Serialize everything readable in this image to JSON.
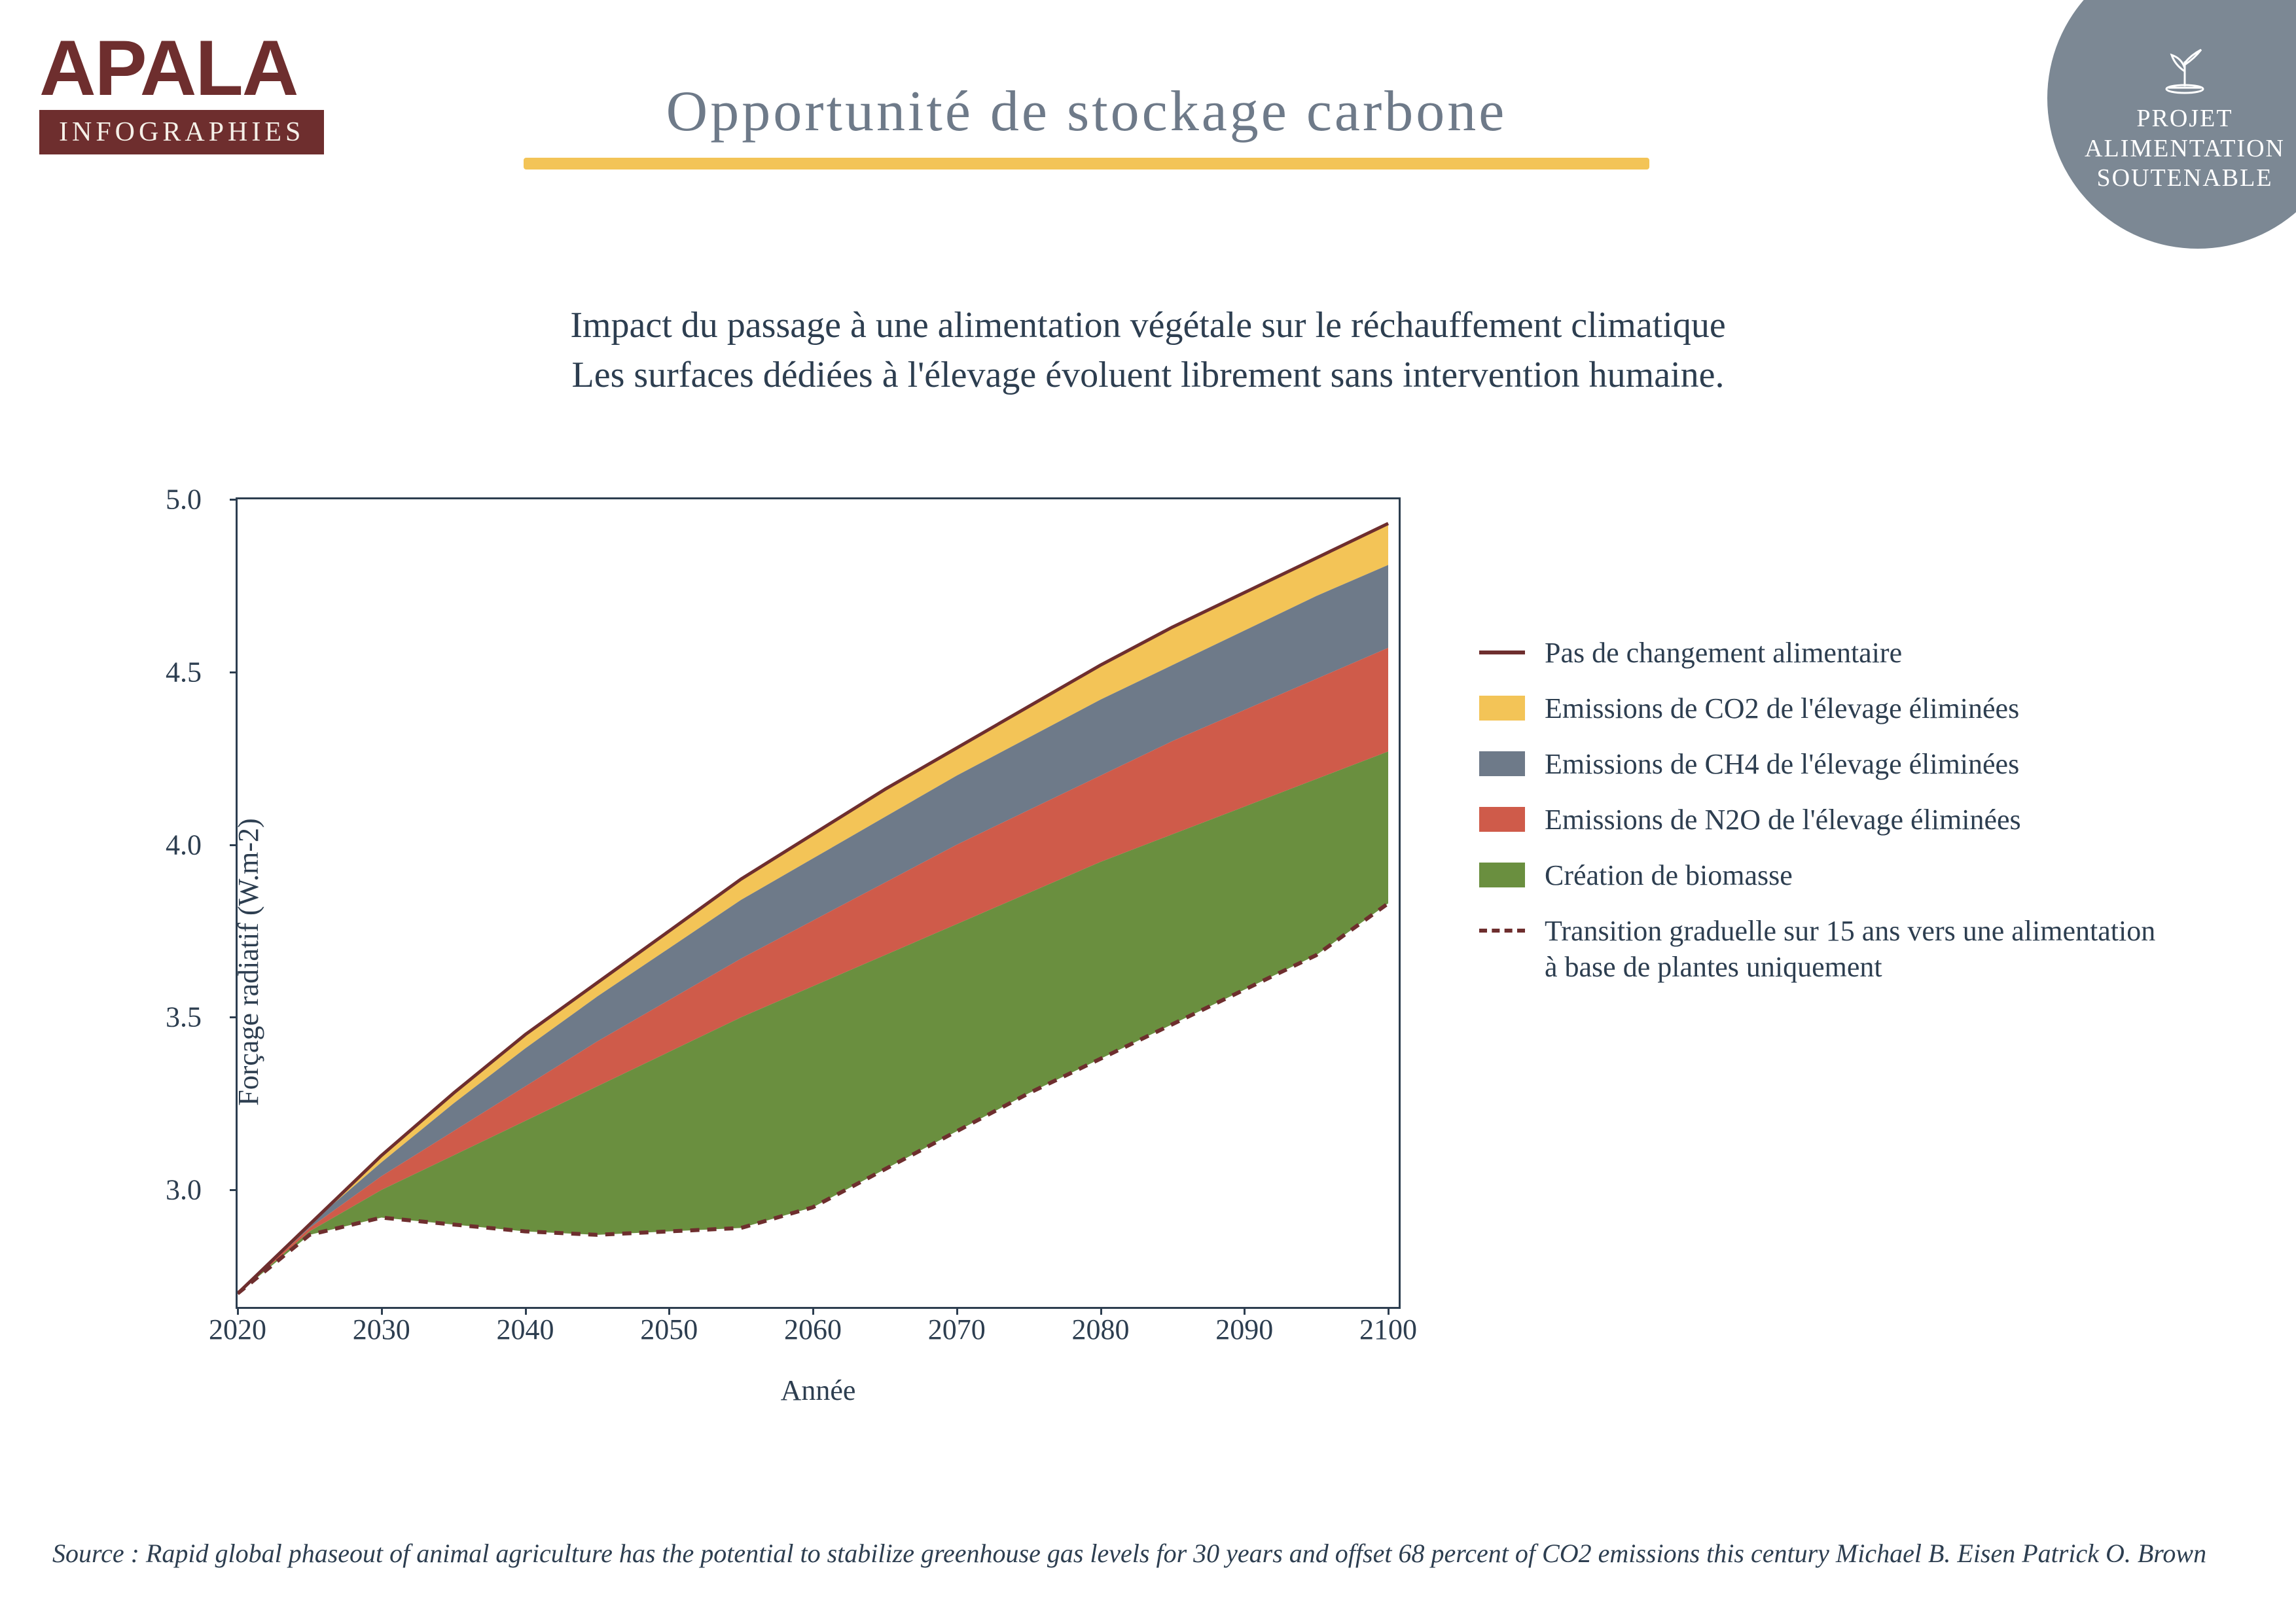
{
  "logo": {
    "main": "APALA",
    "sub": "INFOGRAPHIES",
    "main_color": "#6e2e2e",
    "sub_bg": "#6e2e2e",
    "sub_fg": "#f5f0e8"
  },
  "title": {
    "text": "Opportunité de stockage carbone",
    "color": "#6e7a89",
    "underline_color": "#f3c457",
    "fontsize": 88
  },
  "badge": {
    "line1": "PROJET",
    "line2": "ALIMENTATION",
    "line3": "SOUTENABLE",
    "bg": "#7c8894",
    "fg": "#ffffff"
  },
  "subtitle": {
    "line1": "Impact du passage à une alimentation végétale sur le réchauffement climatique",
    "line2": "Les surfaces dédiées à l'élevage évoluent librement sans intervention humaine."
  },
  "chart": {
    "type": "area",
    "xlabel": "Année",
    "ylabel": "Forçage radiatif (W.m-2)",
    "xlim": [
      2020,
      2101
    ],
    "ylim": [
      2.65,
      5.0
    ],
    "xticks": [
      2020,
      2030,
      2040,
      2050,
      2060,
      2070,
      2080,
      2090,
      2100
    ],
    "yticks": [
      3.0,
      3.5,
      4.0,
      4.5,
      5.0
    ],
    "axis_color": "#2d3e50",
    "label_fontsize": 44,
    "tick_fontsize": 44,
    "background_color": "#ffffff",
    "x": [
      2020,
      2025,
      2030,
      2035,
      2040,
      2045,
      2050,
      2055,
      2060,
      2065,
      2070,
      2075,
      2080,
      2085,
      2090,
      2095,
      2100
    ],
    "series": {
      "top": [
        2.7,
        2.9,
        3.1,
        3.28,
        3.45,
        3.6,
        3.75,
        3.9,
        4.03,
        4.16,
        4.28,
        4.4,
        4.52,
        4.63,
        4.73,
        4.83,
        4.93
      ],
      "co2": [
        2.7,
        2.9,
        3.08,
        3.25,
        3.41,
        3.56,
        3.7,
        3.84,
        3.96,
        4.08,
        4.2,
        4.31,
        4.42,
        4.52,
        4.62,
        4.72,
        4.81
      ],
      "ch4": [
        2.7,
        2.89,
        3.04,
        3.17,
        3.3,
        3.43,
        3.55,
        3.67,
        3.78,
        3.89,
        4.0,
        4.1,
        4.2,
        4.3,
        4.39,
        4.48,
        4.57
      ],
      "n2o": [
        2.7,
        2.88,
        3.0,
        3.1,
        3.2,
        3.3,
        3.4,
        3.5,
        3.59,
        3.68,
        3.77,
        3.86,
        3.95,
        4.03,
        4.11,
        4.19,
        4.27
      ],
      "biomass": [
        2.7,
        2.87,
        2.92,
        2.9,
        2.88,
        2.87,
        2.88,
        2.89,
        2.95,
        3.06,
        3.17,
        3.28,
        3.38,
        3.48,
        3.58,
        3.68,
        3.83
      ]
    },
    "colors": {
      "top_line": "#6e2e2e",
      "co2_fill": "#f3c457",
      "ch4_fill": "#6e7a89",
      "n2o_fill": "#cf5b4a",
      "bio_fill": "#6a8f3f",
      "dashed": "#6e2e2e"
    },
    "line_width_top": 5,
    "line_width_dashed": 6,
    "dash_pattern": "14 12"
  },
  "legend": {
    "items": [
      {
        "type": "line",
        "color": "#6e2e2e",
        "label": "Pas de changement alimentaire"
      },
      {
        "type": "block",
        "color": "#f3c457",
        "label": "Emissions de CO2 de l'élevage éliminées"
      },
      {
        "type": "block",
        "color": "#6e7a89",
        "label": "Emissions de CH4 de l'élevage éliminées"
      },
      {
        "type": "block",
        "color": "#cf5b4a",
        "label": "Emissions de N2O de l'élevage éliminées"
      },
      {
        "type": "block",
        "color": "#6a8f3f",
        "label": "Création de biomasse"
      },
      {
        "type": "dashed",
        "color": "#6e2e2e",
        "label": "Transition graduelle sur 15 ans vers une alimentation à base de plantes uniquement"
      }
    ],
    "fontsize": 44
  },
  "source": {
    "prefix": "Source : ",
    "text": "Rapid global phaseout of animal agriculture has the potential to stabilize greenhouse gas levels for 30 years and offset 68 percent of CO2 emissions this century Michael B. Eisen Patrick O. Brown"
  }
}
